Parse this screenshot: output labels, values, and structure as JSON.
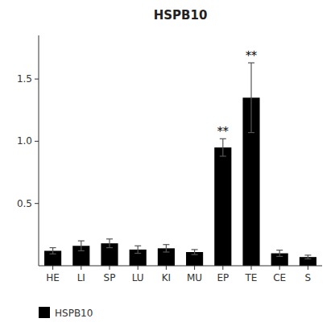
{
  "chart_data": {
    "type": "bar",
    "title": "HSPB10",
    "categories": [
      "HE",
      "LI",
      "SP",
      "LU",
      "KI",
      "MU",
      "EP",
      "TE",
      "CE",
      "S"
    ],
    "series": [
      {
        "name": "HSPB10",
        "color": "#000000",
        "values": [
          0.12,
          0.16,
          0.18,
          0.13,
          0.14,
          0.11,
          0.95,
          1.35,
          0.1,
          0.07
        ],
        "errors": [
          0.025,
          0.04,
          0.035,
          0.03,
          0.03,
          0.02,
          0.07,
          0.28,
          0.025,
          0.015
        ]
      }
    ],
    "annotations": [
      {
        "x": "EP",
        "text": "**"
      },
      {
        "x": "TE",
        "text": "**"
      }
    ],
    "ylim": [
      0,
      1.85
    ],
    "yticks": [
      0.5,
      {
        "value": 1.0,
        "label": "1.0"
      },
      1.5
    ],
    "legend": "bottom",
    "grid": false
  }
}
